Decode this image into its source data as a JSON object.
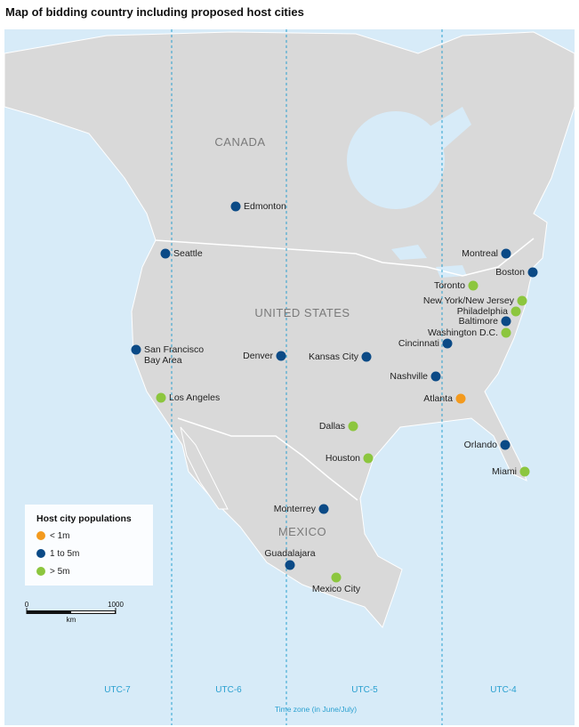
{
  "title": "Map of bidding country including proposed host cities",
  "map": {
    "regions": [
      "CANADA",
      "UNITED STATES",
      "MEXICO"
    ],
    "cities": [
      {
        "name": "Edmonton",
        "population": "1 to 5m"
      },
      {
        "name": "Seattle",
        "population": "1 to 5m"
      },
      {
        "name": "San Francisco Bay Area",
        "population": "1 to 5m"
      },
      {
        "name": "Los Angeles",
        "population": "> 5m"
      },
      {
        "name": "Denver",
        "population": "1 to 5m"
      },
      {
        "name": "Kansas City",
        "population": "1 to 5m"
      },
      {
        "name": "Dallas",
        "population": "> 5m"
      },
      {
        "name": "Houston",
        "population": "> 5m"
      },
      {
        "name": "Monterrey",
        "population": "1 to 5m"
      },
      {
        "name": "Guadalajara",
        "population": "1 to 5m"
      },
      {
        "name": "Mexico City",
        "population": "> 5m"
      },
      {
        "name": "Montreal",
        "population": "1 to 5m"
      },
      {
        "name": "Boston",
        "population": "1 to 5m"
      },
      {
        "name": "Toronto",
        "population": "> 5m"
      },
      {
        "name": "New York/New Jersey",
        "population": "> 5m"
      },
      {
        "name": "Philadelphia",
        "population": "> 5m"
      },
      {
        "name": "Baltimore",
        "population": "1 to 5m"
      },
      {
        "name": "Washington D.C.",
        "population": "> 5m"
      },
      {
        "name": "Cincinnati",
        "population": "1 to 5m"
      },
      {
        "name": "Nashville",
        "population": "1 to 5m"
      },
      {
        "name": "Atlanta",
        "population": "< 1m"
      },
      {
        "name": "Orlando",
        "population": "1 to 5m"
      },
      {
        "name": "Miami",
        "population": "> 5m"
      }
    ],
    "legend": {
      "title": "Host city populations",
      "items": [
        {
          "label": "< 1m",
          "color": "#f39a1e"
        },
        {
          "label": "1 to 5m",
          "color": "#0b4a86"
        },
        {
          "label": "> 5m",
          "color": "#8cc63e"
        }
      ]
    },
    "scale": {
      "ticks": [
        0,
        1000
      ],
      "unit": "km"
    },
    "time_zones": [
      "UTC-7",
      "UTC-6",
      "UTC-5",
      "UTC-4"
    ],
    "time_zone_caption": "Time zone (in June/July)"
  }
}
